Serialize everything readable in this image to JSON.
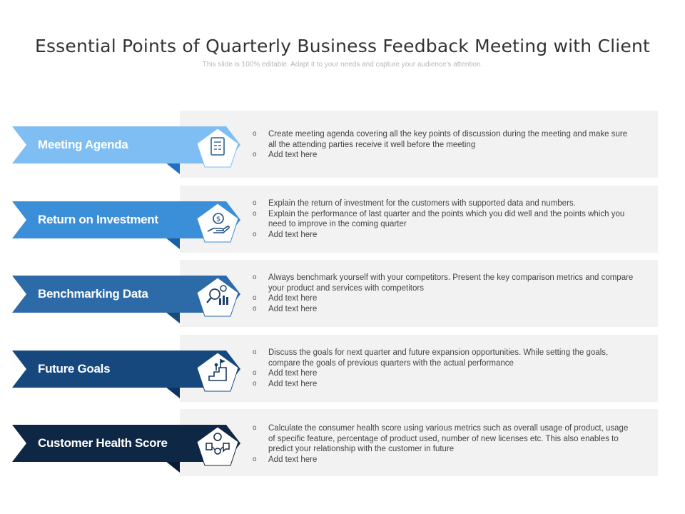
{
  "title": "Essential Points of Quarterly Business Feedback Meeting with Client",
  "subtitle": "This slide is 100% editable. Adapt it to your needs and capture your audience's attention.",
  "rows": [
    {
      "label": "Meeting Agenda",
      "color": "#7fbef3",
      "fold_color": "#1f6fc4",
      "icon": "agenda-document-icon",
      "bullets": [
        "Create meeting agenda covering all the key points of discussion during the meeting and make sure all the attending parties receive it well before the meeting",
        "Add text here"
      ]
    },
    {
      "label": "Return on Investment",
      "color": "#3b8fd8",
      "fold_color": "#1a5fa6",
      "icon": "money-hand-icon",
      "bullets": [
        "Explain the return of investment for the customers with supported data and numbers.",
        "Explain the performance of last quarter and the points which you did well and the points which you need to improve in the coming quarter",
        "Add text here"
      ]
    },
    {
      "label": "Benchmarking Data",
      "color": "#2c6aa8",
      "fold_color": "#17497c",
      "icon": "magnifier-chart-icon",
      "bullets": [
        "Always benchmark yourself with your competitors. Present the key comparison metrics and compare your product and services with competitors",
        "Add text here",
        "Add text here"
      ]
    },
    {
      "label": "Future Goals",
      "color": "#16487e",
      "fold_color": "#0d3360",
      "icon": "goal-flag-stairs-icon",
      "bullets": [
        "Discuss the goals for next quarter and future expansion opportunities. While setting the goals, compare the goals of previous quarters with the actual performance",
        "Add text here",
        "Add text here"
      ]
    },
    {
      "label": "Customer Health Score",
      "color": "#0e2745",
      "fold_color": "#0a1c33",
      "icon": "customer-feedback-icon",
      "bullets": [
        "Calculate the consumer health score using various metrics such as overall usage of product, usage of specific feature, percentage of product used, number of new licenses etc. This also enables to predict your relationship with the customer in future",
        "Add text here"
      ]
    }
  ]
}
